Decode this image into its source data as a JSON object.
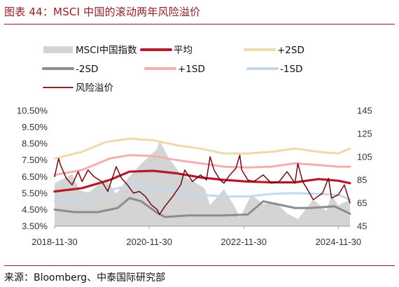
{
  "title": "图表 44：MSCI 中国的滚动两年风险溢价",
  "source": "来源：Bloomberg、中泰国际研究部",
  "colors": {
    "index": "#d4d4d4",
    "mean": "#b5192a",
    "plus2sd": "#f0d9aa",
    "minus2sd": "#8c8c8c",
    "plus1sd": "#f5aeb0",
    "minus1sd": "#c4d9ec",
    "premium": "#6e0a12"
  },
  "chart_data": {
    "type": "line",
    "title": "",
    "xlabel": "",
    "ylabel_left": "",
    "ylabel_right": "",
    "x_start": "2018-11-30",
    "x_end": "2025-02-28",
    "x_ticks": [
      "2018-11-30",
      "2020-11-30",
      "2022-11-30",
      "2024-11-30"
    ],
    "y_left": {
      "min": 3.5,
      "max": 10.5,
      "ticks": [
        "3.50%",
        "4.50%",
        "5.50%",
        "6.50%",
        "7.50%",
        "8.50%",
        "9.50%",
        "10.50%"
      ]
    },
    "y_right": {
      "min": 45,
      "max": 145,
      "ticks": [
        "45",
        "65",
        "85",
        "105",
        "125",
        "145"
      ]
    },
    "legend": [
      "MSCI中国指数",
      "平均",
      "+2SD",
      "-2SD",
      "+1SD",
      "-1SD",
      "风险溢价"
    ],
    "series": [
      {
        "name": "MSCI中国指数",
        "axis": "right",
        "kind": "area",
        "points": [
          [
            "2018-11-30",
            82
          ],
          [
            "2019-04-15",
            90
          ],
          [
            "2019-06-10",
            76
          ],
          [
            "2019-08-20",
            74
          ],
          [
            "2019-12-31",
            86
          ],
          [
            "2020-03-20",
            73
          ],
          [
            "2020-06-30",
            88
          ],
          [
            "2020-09-30",
            99
          ],
          [
            "2021-01-31",
            112
          ],
          [
            "2021-02-17",
            119
          ],
          [
            "2021-04-30",
            104
          ],
          [
            "2021-07-31",
            90
          ],
          [
            "2021-10-31",
            84
          ],
          [
            "2022-01-31",
            78
          ],
          [
            "2022-03-15",
            63
          ],
          [
            "2022-06-30",
            77
          ],
          [
            "2022-09-30",
            60
          ],
          [
            "2022-10-31",
            52
          ],
          [
            "2023-01-27",
            72
          ],
          [
            "2023-04-30",
            64
          ],
          [
            "2023-07-31",
            66
          ],
          [
            "2023-10-31",
            56
          ],
          [
            "2024-01-22",
            51
          ],
          [
            "2024-05-20",
            68
          ],
          [
            "2024-08-30",
            58
          ],
          [
            "2024-10-08",
            72
          ],
          [
            "2024-11-30",
            63
          ],
          [
            "2025-02-28",
            68
          ]
        ]
      },
      {
        "name": "平均",
        "axis": "left",
        "points": [
          [
            "2018-11-30",
            5.6
          ],
          [
            "2019-06-30",
            5.8
          ],
          [
            "2020-01-31",
            6.3
          ],
          [
            "2020-06-30",
            6.8
          ],
          [
            "2020-12-31",
            6.85
          ],
          [
            "2021-06-30",
            6.7
          ],
          [
            "2021-12-31",
            6.45
          ],
          [
            "2022-06-30",
            6.3
          ],
          [
            "2022-12-31",
            6.2
          ],
          [
            "2023-06-30",
            6.15
          ],
          [
            "2023-12-31",
            6.15
          ],
          [
            "2024-06-30",
            6.35
          ],
          [
            "2024-11-30",
            6.25
          ],
          [
            "2025-02-28",
            6.1
          ]
        ]
      },
      {
        "name": "+2SD",
        "axis": "left",
        "points": [
          [
            "2018-11-30",
            7.6
          ],
          [
            "2019-06-30",
            8.0
          ],
          [
            "2019-12-31",
            8.6
          ],
          [
            "2020-06-30",
            8.8
          ],
          [
            "2020-12-31",
            8.7
          ],
          [
            "2021-06-30",
            8.4
          ],
          [
            "2021-12-31",
            8.2
          ],
          [
            "2022-06-30",
            7.9
          ],
          [
            "2022-12-31",
            7.9
          ],
          [
            "2023-06-30",
            8.0
          ],
          [
            "2023-12-31",
            8.2
          ],
          [
            "2024-06-30",
            8.0
          ],
          [
            "2024-11-30",
            7.9
          ],
          [
            "2025-02-28",
            8.2
          ]
        ]
      },
      {
        "name": "-2SD",
        "axis": "left",
        "points": [
          [
            "2018-11-30",
            4.5
          ],
          [
            "2019-04-30",
            4.35
          ],
          [
            "2019-10-31",
            4.35
          ],
          [
            "2020-03-31",
            4.6
          ],
          [
            "2020-06-30",
            5.2
          ],
          [
            "2020-09-30",
            5.0
          ],
          [
            "2021-01-31",
            4.3
          ],
          [
            "2021-03-31",
            4.05
          ],
          [
            "2021-09-30",
            4.15
          ],
          [
            "2022-06-30",
            4.15
          ],
          [
            "2022-12-31",
            4.2
          ],
          [
            "2023-04-30",
            5.0
          ],
          [
            "2023-08-31",
            4.8
          ],
          [
            "2023-12-31",
            4.6
          ],
          [
            "2024-04-30",
            4.6
          ],
          [
            "2024-10-31",
            4.7
          ],
          [
            "2025-02-28",
            4.25
          ]
        ]
      },
      {
        "name": "+1SD",
        "axis": "left",
        "points": [
          [
            "2018-11-30",
            6.6
          ],
          [
            "2019-06-30",
            6.9
          ],
          [
            "2020-01-31",
            7.6
          ],
          [
            "2020-06-30",
            7.8
          ],
          [
            "2020-12-31",
            7.75
          ],
          [
            "2021-06-30",
            7.5
          ],
          [
            "2021-12-31",
            7.3
          ],
          [
            "2022-06-30",
            7.1
          ],
          [
            "2022-12-31",
            7.05
          ],
          [
            "2023-06-30",
            7.1
          ],
          [
            "2023-12-31",
            7.3
          ],
          [
            "2024-06-30",
            7.2
          ],
          [
            "2024-11-30",
            7.1
          ],
          [
            "2025-02-28",
            7.1
          ]
        ]
      },
      {
        "name": "-1SD",
        "axis": "left",
        "points": [
          [
            "2018-11-30",
            5.05
          ],
          [
            "2019-06-30",
            5.1
          ],
          [
            "2020-01-31",
            5.7
          ],
          [
            "2020-06-30",
            5.95
          ],
          [
            "2020-12-31",
            5.8
          ],
          [
            "2021-06-30",
            5.6
          ],
          [
            "2021-12-31",
            5.4
          ],
          [
            "2022-06-30",
            5.3
          ],
          [
            "2022-12-31",
            5.3
          ],
          [
            "2023-06-30",
            5.45
          ],
          [
            "2023-12-31",
            5.5
          ],
          [
            "2024-06-30",
            5.45
          ],
          [
            "2024-11-30",
            5.4
          ],
          [
            "2025-02-28",
            5.1
          ]
        ]
      },
      {
        "name": "风险溢价",
        "axis": "left",
        "points": [
          [
            "2018-11-30",
            6.5
          ],
          [
            "2018-12-31",
            7.6
          ],
          [
            "2019-01-15",
            7.2
          ],
          [
            "2019-02-28",
            6.4
          ],
          [
            "2019-04-15",
            6.0
          ],
          [
            "2019-05-31",
            6.8
          ],
          [
            "2019-06-30",
            6.2
          ],
          [
            "2019-08-15",
            6.9
          ],
          [
            "2019-09-30",
            6.5
          ],
          [
            "2019-11-30",
            6.2
          ],
          [
            "2020-01-15",
            5.6
          ],
          [
            "2020-03-20",
            7.1
          ],
          [
            "2020-04-30",
            6.4
          ],
          [
            "2020-06-15",
            6.0
          ],
          [
            "2020-07-31",
            5.5
          ],
          [
            "2020-09-15",
            5.6
          ],
          [
            "2020-10-31",
            5.3
          ],
          [
            "2020-12-15",
            4.8
          ],
          [
            "2021-01-31",
            4.5
          ],
          [
            "2021-02-17",
            4.2
          ],
          [
            "2021-03-31",
            4.7
          ],
          [
            "2021-05-31",
            5.3
          ],
          [
            "2021-07-31",
            6.0
          ],
          [
            "2021-08-31",
            6.9
          ],
          [
            "2021-10-31",
            6.2
          ],
          [
            "2021-12-31",
            6.6
          ],
          [
            "2022-02-15",
            6.3
          ],
          [
            "2022-03-15",
            7.7
          ],
          [
            "2022-04-15",
            6.9
          ],
          [
            "2022-05-31",
            6.3
          ],
          [
            "2022-06-30",
            6.1
          ],
          [
            "2022-08-15",
            6.6
          ],
          [
            "2022-09-30",
            7.0
          ],
          [
            "2022-10-31",
            7.8
          ],
          [
            "2022-11-15",
            6.9
          ],
          [
            "2022-12-31",
            6.3
          ],
          [
            "2023-02-15",
            6.2
          ],
          [
            "2023-04-30",
            6.6
          ],
          [
            "2023-06-30",
            6.1
          ],
          [
            "2023-08-31",
            6.2
          ],
          [
            "2023-10-31",
            6.8
          ],
          [
            "2023-12-31",
            6.1
          ],
          [
            "2024-01-22",
            7.3
          ],
          [
            "2024-02-28",
            6.2
          ],
          [
            "2024-03-31",
            5.8
          ],
          [
            "2024-05-20",
            5.1
          ],
          [
            "2024-07-31",
            5.5
          ],
          [
            "2024-09-15",
            6.4
          ],
          [
            "2024-10-08",
            5.2
          ],
          [
            "2024-11-30",
            5.4
          ],
          [
            "2025-01-15",
            6.0
          ],
          [
            "2025-02-28",
            4.9
          ]
        ]
      }
    ]
  }
}
